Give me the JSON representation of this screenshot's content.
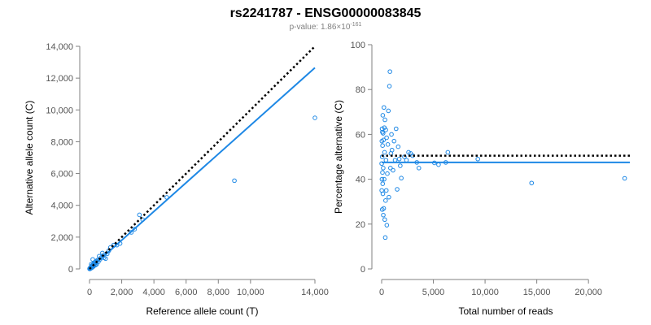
{
  "title": "rs2241787 - ENSG00000083845",
  "subtitle": {
    "prefix": "p-value: 1.86×10",
    "exponent": "-161"
  },
  "colors": {
    "points": "#1e88e5",
    "fit": "#1e88e5",
    "reference": "#000000",
    "axis": "#808080"
  },
  "chart_data": [
    {
      "type": "scatter",
      "id": "left",
      "xlabel": "Reference allele count (T)",
      "ylabel": "Alternative allele count (C)",
      "xlim": [
        0,
        14000
      ],
      "ylim": [
        0,
        14000
      ],
      "x_ticks": [
        0,
        2000,
        4000,
        6000,
        8000,
        10000,
        14000
      ],
      "x_tick_labels": [
        "0",
        "2,000",
        "4,000",
        "6,000",
        "8,000",
        "10,000",
        "14,000"
      ],
      "y_ticks": [
        0,
        2000,
        4000,
        6000,
        8000,
        10000,
        12000,
        14000
      ],
      "y_tick_labels": [
        "0",
        "2,000",
        "4,000",
        "6,000",
        "8,000",
        "10,000",
        "12,000",
        "14,000"
      ],
      "fit_line": {
        "x": [
          0,
          14000
        ],
        "y": [
          0,
          12650
        ]
      },
      "reference_line": {
        "x": [
          0,
          14000
        ],
        "y": [
          0,
          14000
        ],
        "style": "dotted"
      },
      "points": [
        [
          14000,
          9500
        ],
        [
          9000,
          5550
        ],
        [
          4800,
          4500
        ],
        [
          3300,
          3100
        ],
        [
          3100,
          3400
        ],
        [
          2800,
          2500
        ],
        [
          2600,
          2300
        ],
        [
          1900,
          1600
        ],
        [
          1700,
          1500
        ],
        [
          1500,
          1500
        ],
        [
          1300,
          1350
        ],
        [
          1200,
          1150
        ],
        [
          1100,
          950
        ],
        [
          1000,
          650
        ],
        [
          900,
          700
        ],
        [
          850,
          850
        ],
        [
          800,
          1000
        ],
        [
          700,
          700
        ],
        [
          650,
          600
        ],
        [
          600,
          800
        ],
        [
          550,
          450
        ],
        [
          500,
          550
        ],
        [
          450,
          300
        ],
        [
          420,
          500
        ],
        [
          400,
          450
        ],
        [
          380,
          250
        ],
        [
          350,
          350
        ],
        [
          320,
          420
        ],
        [
          300,
          300
        ],
        [
          280,
          200
        ],
        [
          260,
          350
        ],
        [
          240,
          150
        ],
        [
          220,
          250
        ],
        [
          200,
          600
        ],
        [
          200,
          180
        ],
        [
          180,
          120
        ],
        [
          160,
          220
        ],
        [
          150,
          80
        ],
        [
          140,
          160
        ],
        [
          120,
          100
        ],
        [
          110,
          300
        ],
        [
          100,
          60
        ],
        [
          90,
          120
        ],
        [
          80,
          40
        ],
        [
          70,
          90
        ],
        [
          60,
          50
        ],
        [
          50,
          30
        ],
        [
          45,
          70
        ],
        [
          40,
          20
        ],
        [
          35,
          40
        ],
        [
          30,
          15
        ],
        [
          25,
          30
        ],
        [
          20,
          10
        ],
        [
          15,
          20
        ],
        [
          10,
          5
        ],
        [
          5,
          8
        ]
      ]
    },
    {
      "type": "scatter",
      "id": "right",
      "xlabel": "Total number of reads",
      "ylabel": "Percentage alternative (C)",
      "xlim": [
        0,
        24000
      ],
      "ylim": [
        0,
        100
      ],
      "x_ticks": [
        0,
        5000,
        10000,
        15000,
        20000
      ],
      "x_tick_labels": [
        "0",
        "5,000",
        "10,000",
        "15,000",
        "20,000"
      ],
      "y_ticks": [
        0,
        20,
        40,
        60,
        80,
        100
      ],
      "y_tick_labels": [
        "0",
        "20",
        "40",
        "60",
        "80",
        "100"
      ],
      "fit_line": {
        "x": [
          0,
          24000
        ],
        "y": [
          47.5,
          47.5
        ]
      },
      "reference_line": {
        "x": [
          0,
          24000
        ],
        "y": [
          50.5,
          50.5
        ],
        "style": "dotted"
      },
      "points": [
        [
          23500,
          40.4
        ],
        [
          14500,
          38.3
        ],
        [
          9300,
          49.0
        ],
        [
          6400,
          52.0
        ],
        [
          6200,
          47.5
        ],
        [
          5500,
          46.5
        ],
        [
          5100,
          47.3
        ],
        [
          3600,
          45.0
        ],
        [
          3400,
          47.5
        ],
        [
          3000,
          50.5
        ],
        [
          2800,
          51.5
        ],
        [
          2600,
          52.0
        ],
        [
          2400,
          48.5
        ],
        [
          2200,
          50.0
        ],
        [
          1900,
          40.5
        ],
        [
          1800,
          46.0
        ],
        [
          1700,
          49.0
        ],
        [
          1600,
          54.5
        ],
        [
          1500,
          35.5
        ],
        [
          1400,
          62.5
        ],
        [
          1300,
          48.5
        ],
        [
          1200,
          57.0
        ],
        [
          1100,
          44.0
        ],
        [
          1000,
          53.0
        ],
        [
          950,
          60.0
        ],
        [
          900,
          51.5
        ],
        [
          850,
          45.0
        ],
        [
          800,
          88.0
        ],
        [
          750,
          81.5
        ],
        [
          700,
          32.0
        ],
        [
          650,
          70.5
        ],
        [
          600,
          55.5
        ],
        [
          550,
          42.5
        ],
        [
          500,
          19.5
        ],
        [
          480,
          58.5
        ],
        [
          450,
          35.0
        ],
        [
          420,
          48.5
        ],
        [
          400,
          62.0
        ],
        [
          380,
          30.5
        ],
        [
          350,
          14.0
        ],
        [
          320,
          66.5
        ],
        [
          300,
          22.0
        ],
        [
          280,
          52.0
        ],
        [
          260,
          63.0
        ],
        [
          240,
          40.0
        ],
        [
          220,
          72.0
        ],
        [
          200,
          27.0
        ],
        [
          180,
          57.5
        ],
        [
          160,
          24.0
        ],
        [
          150,
          45.0
        ],
        [
          140,
          60.5
        ],
        [
          120,
          33.5
        ],
        [
          110,
          68.5
        ],
        [
          100,
          38.0
        ],
        [
          90,
          55.0
        ],
        [
          80,
          43.0
        ],
        [
          70,
          61.0
        ],
        [
          60,
          26.5
        ],
        [
          50,
          50.0
        ],
        [
          40,
          62.5
        ],
        [
          30,
          40.0
        ],
        [
          20,
          57.0
        ],
        [
          10,
          35.0
        ],
        [
          5,
          47.0
        ]
      ]
    }
  ]
}
